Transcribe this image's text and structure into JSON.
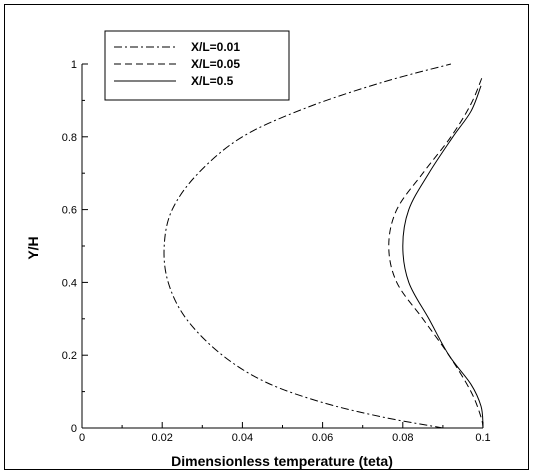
{
  "chart_data": {
    "type": "line",
    "xlabel": "Dimensionless temperature (teta)",
    "ylabel": "Y/H",
    "xlim": [
      0,
      0.1
    ],
    "ylim": [
      0,
      1
    ],
    "x_ticks": [
      0,
      0.02,
      0.04,
      0.06,
      0.08,
      0.1
    ],
    "x_tick_labels": [
      "0",
      "0.02",
      "0.04",
      "0.06",
      "0.08",
      "0.1"
    ],
    "y_ticks": [
      0,
      0.2,
      0.4,
      0.6,
      0.8,
      1
    ],
    "y_tick_labels": [
      "0",
      "0.2",
      "0.4",
      "0.6",
      "0.8",
      "1"
    ],
    "grid": false,
    "legend_position": "top-left",
    "series": [
      {
        "name": "X/L=0.01",
        "dash": "dash-dot",
        "points": [
          [
            0.09,
            0
          ],
          [
            0.075,
            0.03
          ],
          [
            0.06,
            0.07
          ],
          [
            0.046,
            0.125
          ],
          [
            0.035,
            0.2
          ],
          [
            0.026,
            0.3
          ],
          [
            0.0215,
            0.4
          ],
          [
            0.0205,
            0.5
          ],
          [
            0.0225,
            0.6
          ],
          [
            0.029,
            0.7
          ],
          [
            0.04,
            0.8
          ],
          [
            0.056,
            0.88
          ],
          [
            0.075,
            0.95
          ],
          [
            0.092,
            1.0
          ]
        ]
      },
      {
        "name": "X/L=0.05",
        "dash": "dashed",
        "points": [
          [
            0.1,
            0
          ],
          [
            0.0995,
            0.03
          ],
          [
            0.097,
            0.1
          ],
          [
            0.0915,
            0.2
          ],
          [
            0.085,
            0.3
          ],
          [
            0.0785,
            0.4
          ],
          [
            0.0765,
            0.5
          ],
          [
            0.0785,
            0.6
          ],
          [
            0.085,
            0.7
          ],
          [
            0.092,
            0.8
          ],
          [
            0.097,
            0.89
          ],
          [
            0.1,
            0.97
          ]
        ]
      },
      {
        "name": "X/L=0.5",
        "dash": "solid",
        "points": [
          [
            0.1,
            0.01
          ],
          [
            0.0995,
            0.06
          ],
          [
            0.097,
            0.12
          ],
          [
            0.0915,
            0.2
          ],
          [
            0.0865,
            0.3
          ],
          [
            0.0815,
            0.4
          ],
          [
            0.08,
            0.5
          ],
          [
            0.0815,
            0.6
          ],
          [
            0.0865,
            0.7
          ],
          [
            0.0925,
            0.8
          ],
          [
            0.097,
            0.87
          ],
          [
            0.0995,
            0.94
          ]
        ]
      }
    ]
  }
}
